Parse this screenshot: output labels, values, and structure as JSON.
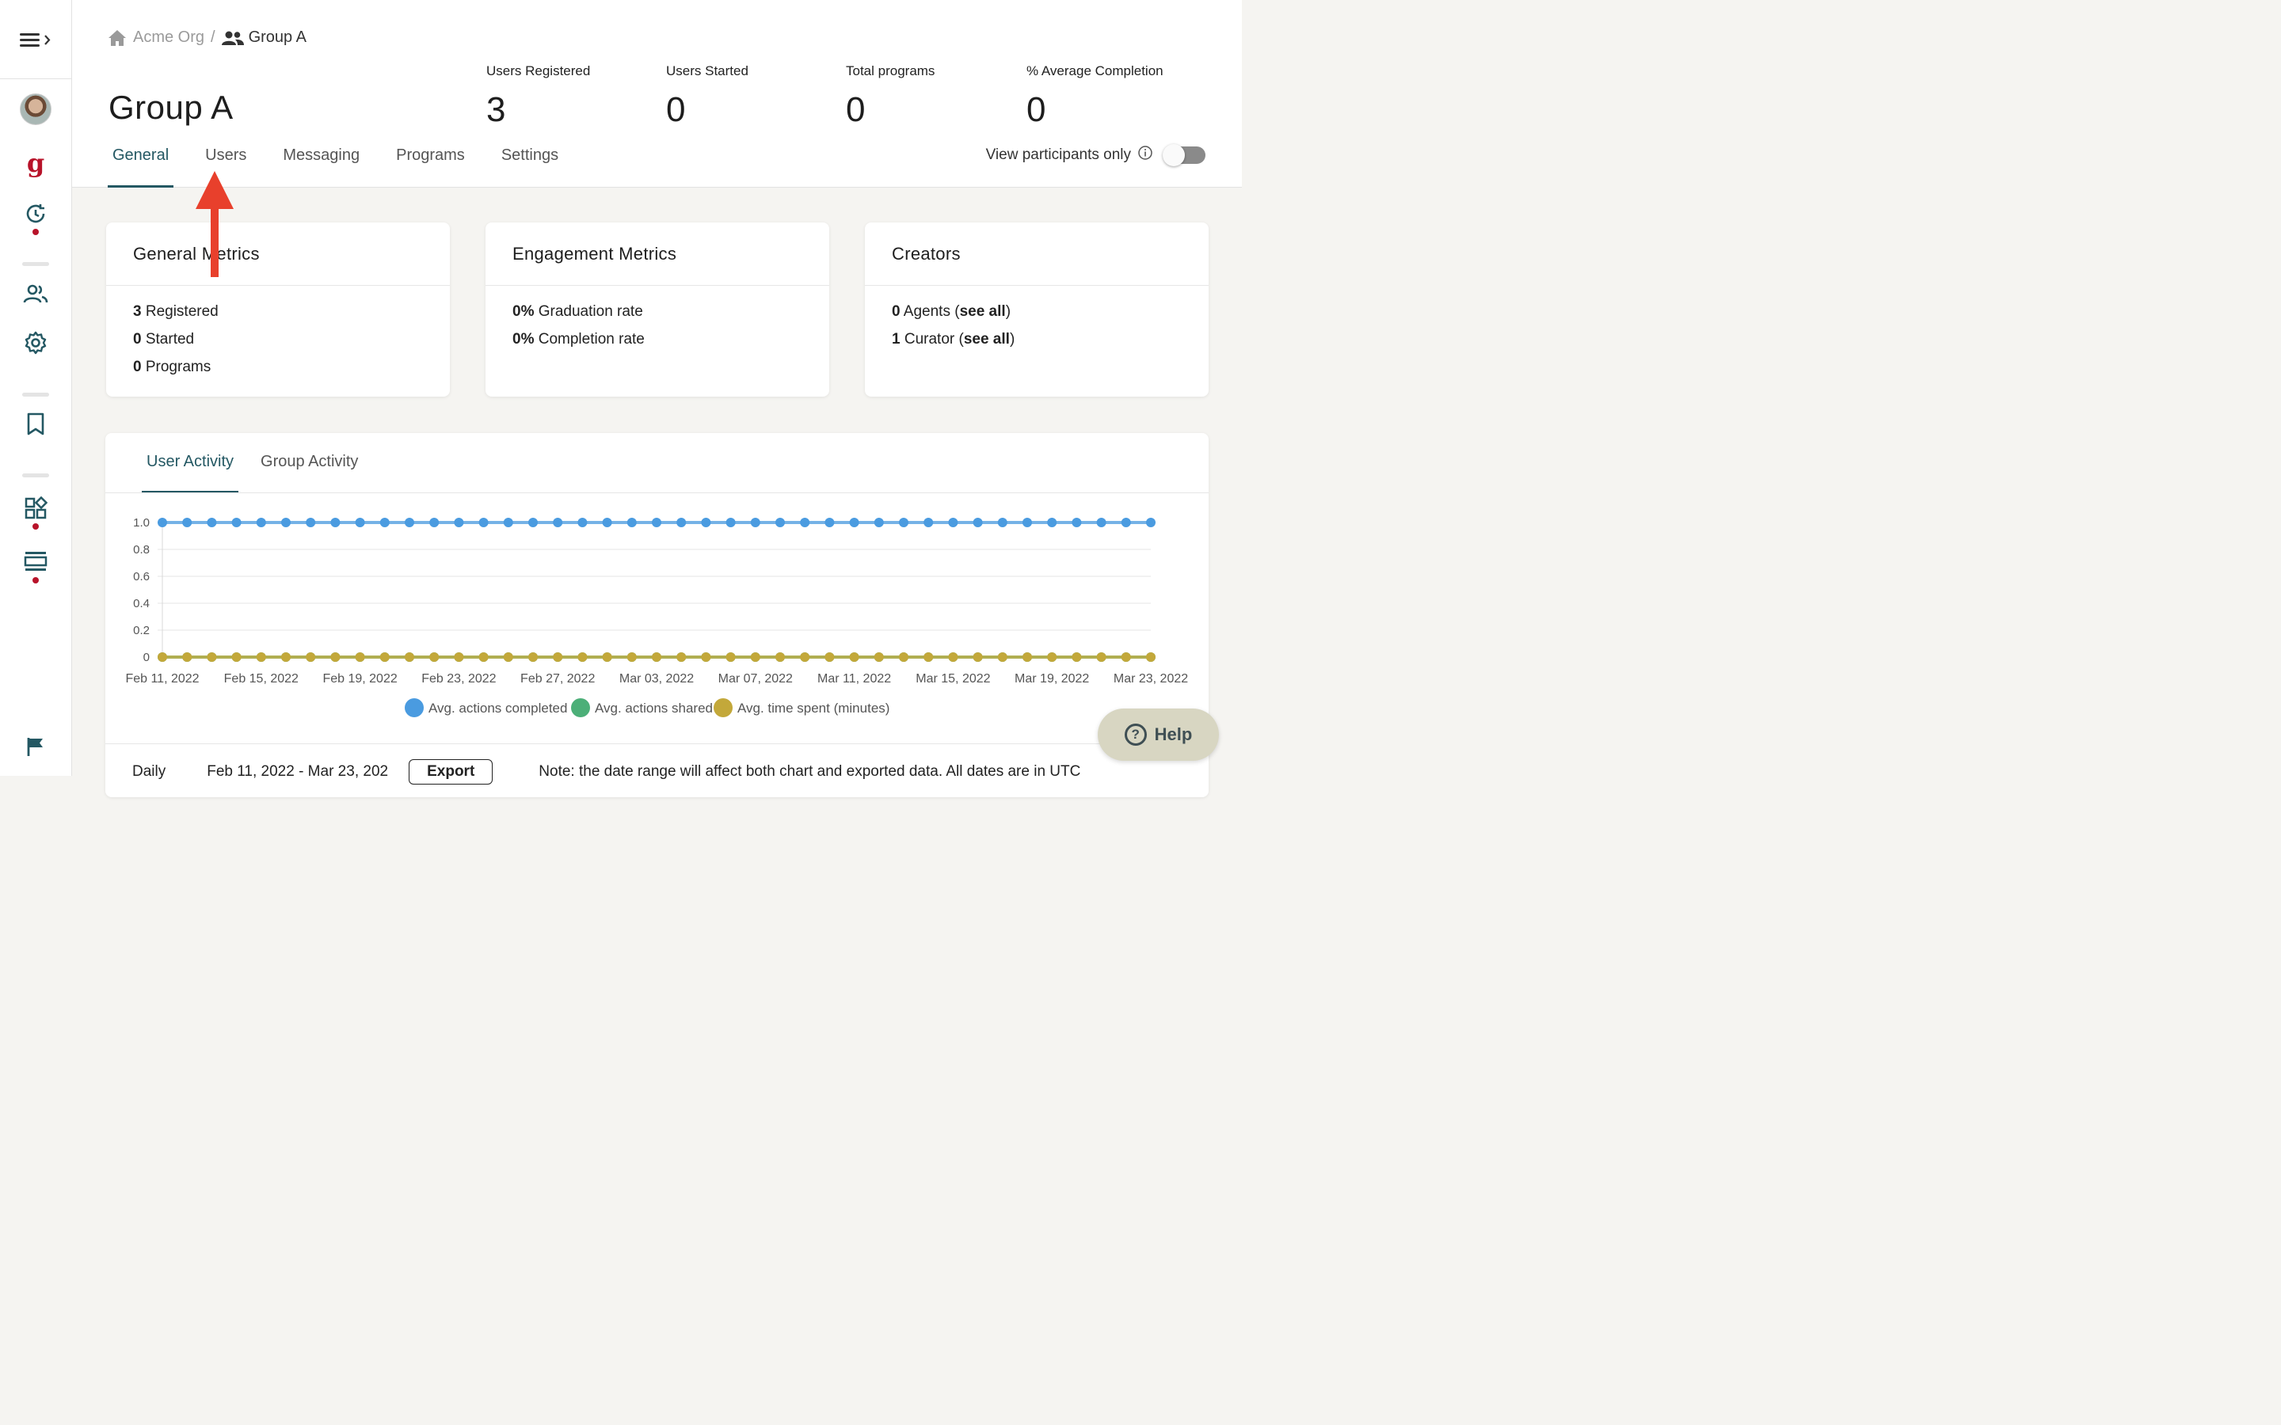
{
  "breadcrumb": {
    "org": "Acme Org",
    "separator": "/",
    "group": "Group A"
  },
  "page_title": "Group A",
  "stats": [
    {
      "label": "Users Registered",
      "value": "3"
    },
    {
      "label": "Users Started",
      "value": "0"
    },
    {
      "label": "Total programs",
      "value": "0"
    },
    {
      "label": "% Average Completion",
      "value": "0"
    }
  ],
  "tabs": [
    "General",
    "Users",
    "Messaging",
    "Programs",
    "Settings"
  ],
  "active_tab": "General",
  "view_participants": {
    "label": "View participants only",
    "enabled": false
  },
  "cards": {
    "general": {
      "title": "General Metrics",
      "lines": [
        {
          "num": "3",
          "text": " Registered"
        },
        {
          "num": "0",
          "text": " Started"
        },
        {
          "num": "0",
          "text": " Programs"
        }
      ]
    },
    "engagement": {
      "title": "Engagement Metrics",
      "lines": [
        {
          "num": "0%",
          "text": " Graduation rate"
        },
        {
          "num": "0%",
          "text": " Completion rate"
        }
      ]
    },
    "creators": {
      "title": "Creators",
      "lines": [
        {
          "num": "0",
          "text": " Agents (",
          "link": "see all",
          "end": ")"
        },
        {
          "num": "1",
          "text": " Curator (",
          "link": "see all",
          "end": ")"
        }
      ]
    }
  },
  "activity_tabs": [
    "User Activity",
    "Group Activity"
  ],
  "bottom": {
    "period": "Daily",
    "range": "Feb 11, 2022 - Mar 23, 202",
    "export": "Export",
    "note": "Note: the date range will affect both chart and exported data. All dates are in UTC"
  },
  "help": "Help",
  "colors": {
    "accent": "#245863",
    "brand_red": "#b8132a",
    "series_blue": "#4a9be0",
    "series_green": "#4caf78",
    "series_gold": "#c3a83a",
    "arrow": "#e8402c"
  },
  "chart_data": {
    "type": "line",
    "ylim": [
      0,
      1.0
    ],
    "yticks": [
      "1.0",
      "0.8",
      "0.6",
      "0.4",
      "0.2",
      "0"
    ],
    "xtick_labels": [
      "Feb 11, 2022",
      "Feb 15, 2022",
      "Feb 19, 2022",
      "Feb 23, 2022",
      "Feb 27, 2022",
      "Mar 03, 2022",
      "Mar 07, 2022",
      "Mar 11, 2022",
      "Mar 15, 2022",
      "Mar 19, 2022",
      "Mar 23, 2022"
    ],
    "x_range": [
      "Feb 11, 2022",
      "Mar 23, 2022"
    ],
    "grid": true,
    "legend_position": "bottom",
    "series": [
      {
        "name": "Avg. actions completed",
        "color": "#4a9be0",
        "values": [
          1,
          1,
          1,
          1,
          1,
          1,
          1,
          1,
          1,
          1,
          1,
          1,
          1,
          1,
          1,
          1,
          1,
          1,
          1,
          1,
          1,
          1,
          1,
          1,
          1,
          1,
          1,
          1,
          1,
          1,
          1,
          1,
          1,
          1,
          1,
          1,
          1,
          1,
          1,
          1,
          1
        ]
      },
      {
        "name": "Avg. actions shared",
        "color": "#4caf78",
        "values": [
          0,
          0,
          0,
          0,
          0,
          0,
          0,
          0,
          0,
          0,
          0,
          0,
          0,
          0,
          0,
          0,
          0,
          0,
          0,
          0,
          0,
          0,
          0,
          0,
          0,
          0,
          0,
          0,
          0,
          0,
          0,
          0,
          0,
          0,
          0,
          0,
          0,
          0,
          0,
          0,
          0
        ]
      },
      {
        "name": "Avg. time spent (minutes)",
        "color": "#c3a83a",
        "values": [
          0,
          0,
          0,
          0,
          0,
          0,
          0,
          0,
          0,
          0,
          0,
          0,
          0,
          0,
          0,
          0,
          0,
          0,
          0,
          0,
          0,
          0,
          0,
          0,
          0,
          0,
          0,
          0,
          0,
          0,
          0,
          0,
          0,
          0,
          0,
          0,
          0,
          0,
          0,
          0,
          0
        ]
      }
    ]
  }
}
